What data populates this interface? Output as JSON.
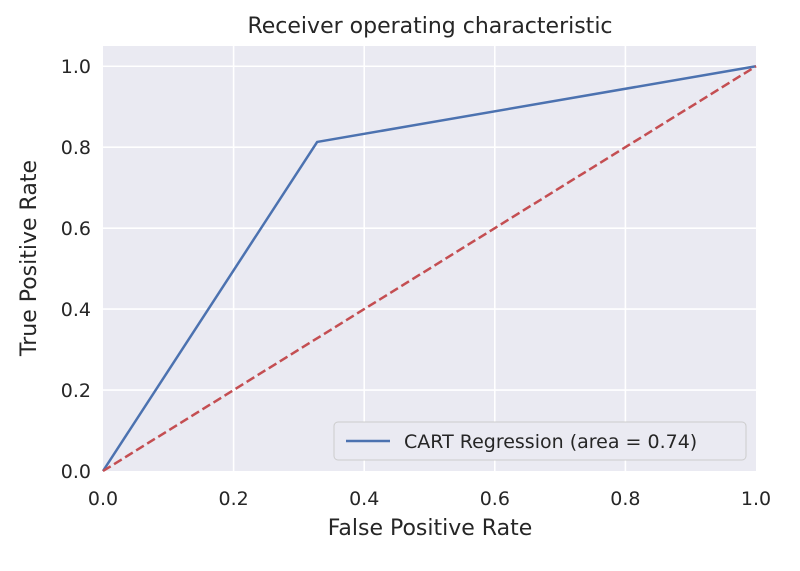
{
  "chart_data": {
    "type": "line",
    "title": "Receiver operating characteristic",
    "xlabel": "False Positive Rate",
    "ylabel": "True Positive Rate",
    "xlim": [
      0.0,
      1.0
    ],
    "ylim": [
      0.0,
      1.05
    ],
    "xticks": [
      "0.0",
      "0.2",
      "0.4",
      "0.6",
      "0.8",
      "1.0"
    ],
    "yticks": [
      "0.0",
      "0.2",
      "0.4",
      "0.6",
      "0.8",
      "1.0"
    ],
    "grid": true,
    "legend_position": "lower right",
    "series": [
      {
        "name": "CART Regression (area = 0.74)",
        "style": "solid",
        "color": "#4c72b0",
        "x": [
          0.0,
          0.328,
          1.0
        ],
        "y": [
          0.0,
          0.813,
          1.0
        ]
      },
      {
        "style": "dashed",
        "color": "#c44e52",
        "x": [
          0.0,
          1.0
        ],
        "y": [
          0.0,
          1.0
        ]
      }
    ],
    "colors": {
      "plot_background": "#eaeaf2",
      "grid": "#ffffff",
      "text": "#262626"
    }
  }
}
